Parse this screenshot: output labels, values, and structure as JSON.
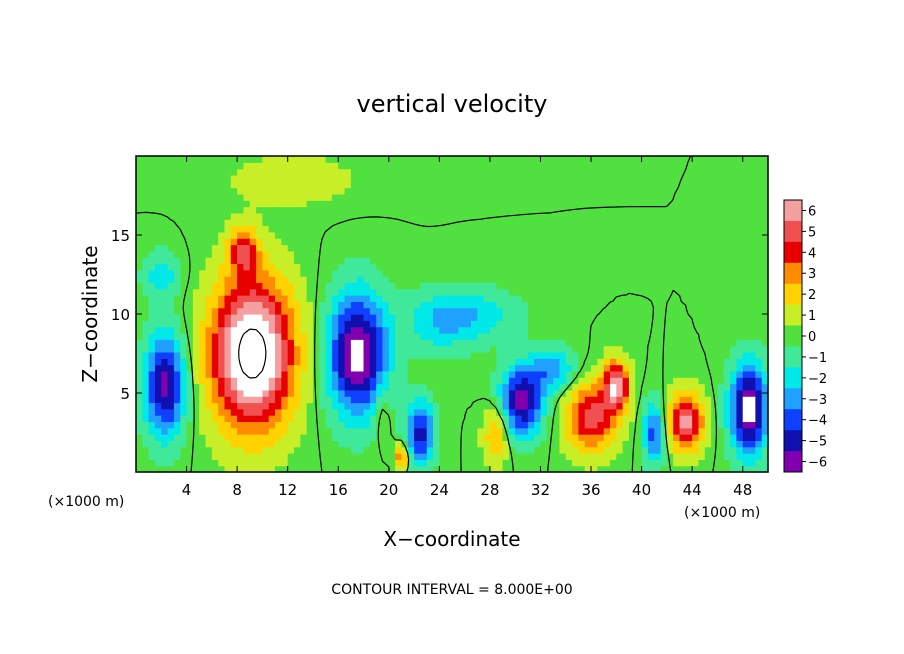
{
  "chart_data": {
    "type": "heatmap",
    "title": "vertical velocity",
    "xlabel": "X−coordinate",
    "ylabel": "Z−coordinate",
    "x_unit_left": "(×1000 m)",
    "x_unit_right": "(×1000 m)",
    "footer": "CONTOUR INTERVAL = 8.000E+00",
    "xlim": [
      0,
      50
    ],
    "ylim": [
      0,
      20
    ],
    "x_ticks": [
      4,
      8,
      12,
      16,
      20,
      24,
      28,
      32,
      36,
      40,
      44,
      48
    ],
    "y_ticks": [
      5,
      10,
      15
    ],
    "colorbar": {
      "labels": [
        "6",
        "5",
        "4",
        "3",
        "2",
        "1",
        "0",
        "−1",
        "−2",
        "−3",
        "−4",
        "−5",
        "−6"
      ],
      "values": [
        6,
        5,
        4,
        3,
        2,
        1,
        0,
        -1,
        -2,
        -3,
        -4,
        -5,
        -6
      ],
      "colors": [
        "#f4a0a0",
        "#f05050",
        "#e80000",
        "#ff8c00",
        "#ffd200",
        "#c8ee28",
        "#50e040",
        "#40e89a",
        "#00e8e8",
        "#20a0ff",
        "#1040ff",
        "#1010b0",
        "#8000b0"
      ]
    },
    "background_value": 0,
    "features": [
      {
        "x": 9.2,
        "z": 7.5,
        "sx": 3.2,
        "sz": 4.6,
        "amp": 9
      },
      {
        "x": 8.5,
        "z": 14.0,
        "sx": 1.2,
        "sz": 1.5,
        "amp": 4
      },
      {
        "x": 2.3,
        "z": 5.5,
        "sx": 1.6,
        "sz": 3.2,
        "amp": -6
      },
      {
        "x": 17.5,
        "z": 7.5,
        "sx": 2.3,
        "sz": 3.8,
        "amp": -7
      },
      {
        "x": 30.5,
        "z": 4.5,
        "sx": 1.7,
        "sz": 2.2,
        "amp": -6
      },
      {
        "x": 48.5,
        "z": 4.0,
        "sx": 1.5,
        "sz": 2.8,
        "amp": -7
      },
      {
        "x": 22.5,
        "z": 2.5,
        "sx": 1.1,
        "sz": 2.0,
        "amp": -5
      },
      {
        "x": 36.0,
        "z": 3.5,
        "sx": 2.0,
        "sz": 2.2,
        "amp": 5
      },
      {
        "x": 38.0,
        "z": 5.5,
        "sx": 1.0,
        "sz": 1.6,
        "amp": 6
      },
      {
        "x": 43.5,
        "z": 3.2,
        "sx": 1.4,
        "sz": 1.8,
        "amp": 6
      },
      {
        "x": 28.5,
        "z": 2.5,
        "sx": 1.0,
        "sz": 1.8,
        "amp": 3
      },
      {
        "x": 21.0,
        "z": 1.0,
        "sx": 0.5,
        "sz": 0.8,
        "amp": 4
      },
      {
        "x": 24.0,
        "z": 9.5,
        "sx": 3.0,
        "sz": 2.0,
        "amp": -2
      },
      {
        "x": 27.0,
        "z": 10.0,
        "sx": 3.5,
        "sz": 1.6,
        "amp": -1.8
      },
      {
        "x": 41.0,
        "z": 2.5,
        "sx": 0.9,
        "sz": 2.0,
        "amp": -4
      },
      {
        "x": 33.0,
        "z": 6.5,
        "sx": 1.8,
        "sz": 1.4,
        "amp": -3
      },
      {
        "x": 12.5,
        "z": 18.5,
        "sx": 5.0,
        "sz": 1.6,
        "amp": 1.2
      },
      {
        "x": 2.0,
        "z": 12.5,
        "sx": 1.5,
        "sz": 1.5,
        "amp": -2
      },
      {
        "x": 19.5,
        "z": 3.5,
        "sx": 0.6,
        "sz": 1.8,
        "amp": 1.5
      }
    ]
  }
}
